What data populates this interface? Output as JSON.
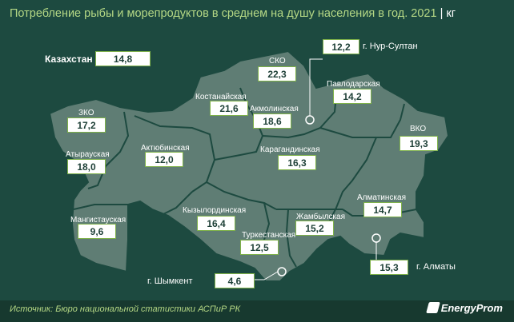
{
  "title": "Потребление рыбы и морепродуктов в среднем на душу населения в год. 2021",
  "unit": "кг",
  "country": {
    "label": "Казахстан",
    "value": "14,8"
  },
  "regions": [
    {
      "id": "zko",
      "label": "ЗКО",
      "value": "17,2"
    },
    {
      "id": "atyrau",
      "label": "Атырауская",
      "value": "18,0"
    },
    {
      "id": "mangistau",
      "label": "Мангистауская",
      "value": "9,6"
    },
    {
      "id": "aktobe",
      "label": "Актюбинская",
      "value": "12,0"
    },
    {
      "id": "kostanay",
      "label": "Костанайская",
      "value": "21,6"
    },
    {
      "id": "sko",
      "label": "СКО",
      "value": "22,3"
    },
    {
      "id": "akmola",
      "label": "Акмолинская",
      "value": "18,6"
    },
    {
      "id": "pavlodar",
      "label": "Павлодарская",
      "value": "14,2"
    },
    {
      "id": "vko",
      "label": "ВКО",
      "value": "19,3"
    },
    {
      "id": "karaganda",
      "label": "Карагандинская",
      "value": "16,3"
    },
    {
      "id": "kyzylorda",
      "label": "Кызылординская",
      "value": "16,4"
    },
    {
      "id": "turkestan",
      "label": "Туркестанская",
      "value": "12,5"
    },
    {
      "id": "zhambyl",
      "label": "Жамбылская",
      "value": "15,2"
    },
    {
      "id": "almaty_region",
      "label": "Алматинская",
      "value": "14,7"
    }
  ],
  "cities": [
    {
      "id": "nur_sultan",
      "label": "г. Нур-Султан",
      "value": "12,2"
    },
    {
      "id": "almaty",
      "label": "г. Алматы",
      "value": "15,3"
    },
    {
      "id": "shymkent",
      "label": "г. Шымкент",
      "value": "4,6"
    }
  ],
  "footer": {
    "source": "Источник: Бюро национальной статистики АСПиР РК",
    "brand": "EnergyProm"
  },
  "colors": {
    "map_fill": "#5f7d74",
    "border": "#1d4a40",
    "accent": "#b5d885",
    "value_border": "#7fb24a"
  }
}
